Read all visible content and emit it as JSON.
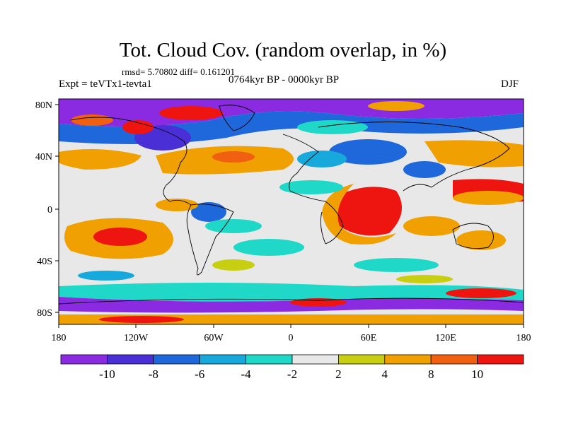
{
  "title": "Tot. Cloud Cov. (random overlap, in %)",
  "stats": "rmsd= 5.70802 diff= 0.161201",
  "experiment": "Expt = teVTx1-tevta1",
  "period": "0764kyr BP - 0000kyr BP",
  "season": "DJF",
  "map": {
    "lon_range": [
      -180,
      180
    ],
    "lat_range": [
      -90,
      90
    ],
    "y_ticks": [
      "80N",
      "40N",
      "0",
      "40S",
      "80S"
    ],
    "x_ticks": [
      "180",
      "120W",
      "60W",
      "0",
      "60E",
      "120E",
      "180"
    ]
  },
  "colorbar": {
    "labels": [
      "-10",
      "-8",
      "-6",
      "-4",
      "-2",
      "2",
      "4",
      "8",
      "10"
    ],
    "colors": [
      "#8a2be2",
      "#4b2fd6",
      "#1f68dc",
      "#17a9dc",
      "#20d8c8",
      "#e8e8e8",
      "#c8cf10",
      "#f0a000",
      "#f06010",
      "#ee1410"
    ]
  }
}
